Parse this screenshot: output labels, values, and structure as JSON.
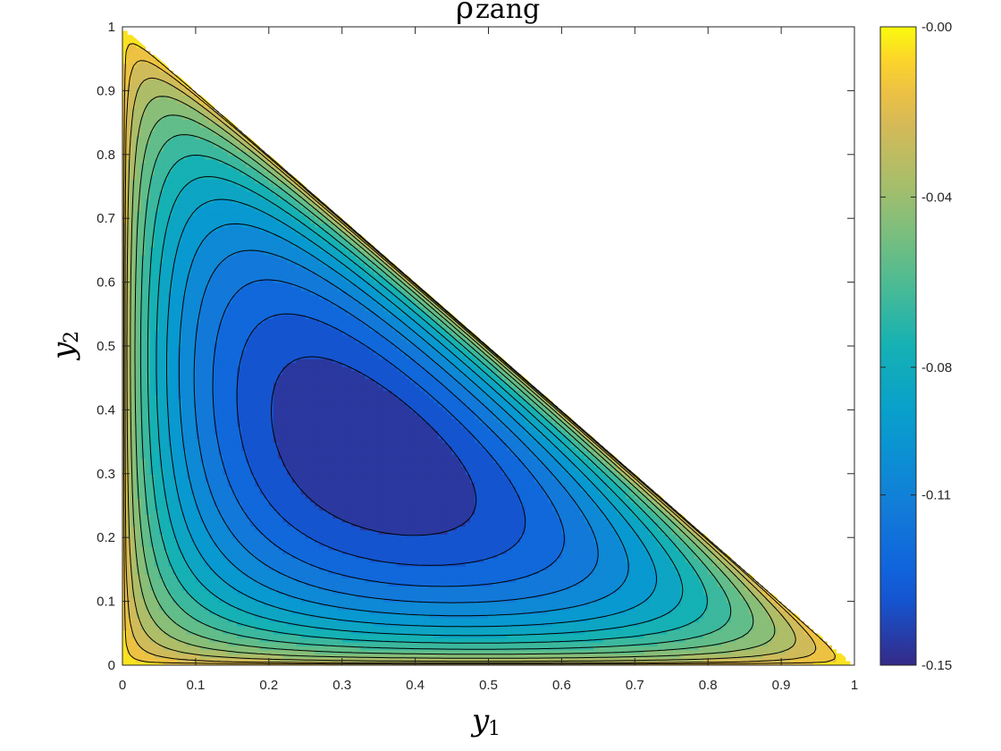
{
  "chart_data": {
    "type": "contour",
    "title": {
      "symbol": "ρ",
      "subscript": "zang"
    },
    "xlabel": {
      "symbol": "y",
      "subscript": "1"
    },
    "ylabel": {
      "symbol": "y",
      "subscript": "2"
    },
    "xlim": [
      0,
      1
    ],
    "ylim": [
      0,
      1
    ],
    "x_ticks": [
      "0",
      "0.1",
      "0.2",
      "0.3",
      "0.4",
      "0.5",
      "0.6",
      "0.7",
      "0.8",
      "0.9",
      "1"
    ],
    "y_ticks": [
      "0",
      "0.1",
      "0.2",
      "0.3",
      "0.4",
      "0.5",
      "0.6",
      "0.7",
      "0.8",
      "0.9",
      "1"
    ],
    "domain": "triangle y1 >= 0, y2 >= 0, y1 + y2 <= 1",
    "colormap": "parula",
    "colorbar": {
      "min": -0.15,
      "max": 0,
      "tick_values": [
        0,
        -0.04,
        -0.08,
        -0.11,
        -0.15
      ],
      "tick_labels": [
        "-0.00",
        "-0.04",
        "-0.08",
        "-0.11",
        "-0.15"
      ]
    },
    "minimum": {
      "y1": 0.33,
      "y2": 0.33,
      "value": -0.15
    },
    "contour_levels": [
      -0.14,
      -0.13,
      -0.12,
      -0.11,
      -0.1,
      -0.09,
      -0.08,
      -0.07,
      -0.06,
      -0.05,
      -0.04,
      -0.03,
      -0.02,
      -0.01
    ],
    "grid": false,
    "colors": {
      "low": "#352a87",
      "mid": "#0f5cdd",
      "teal": "#21b1b3",
      "high": "#fabe3a",
      "top": "#f9fb0e",
      "contour_line": "#000000"
    }
  }
}
